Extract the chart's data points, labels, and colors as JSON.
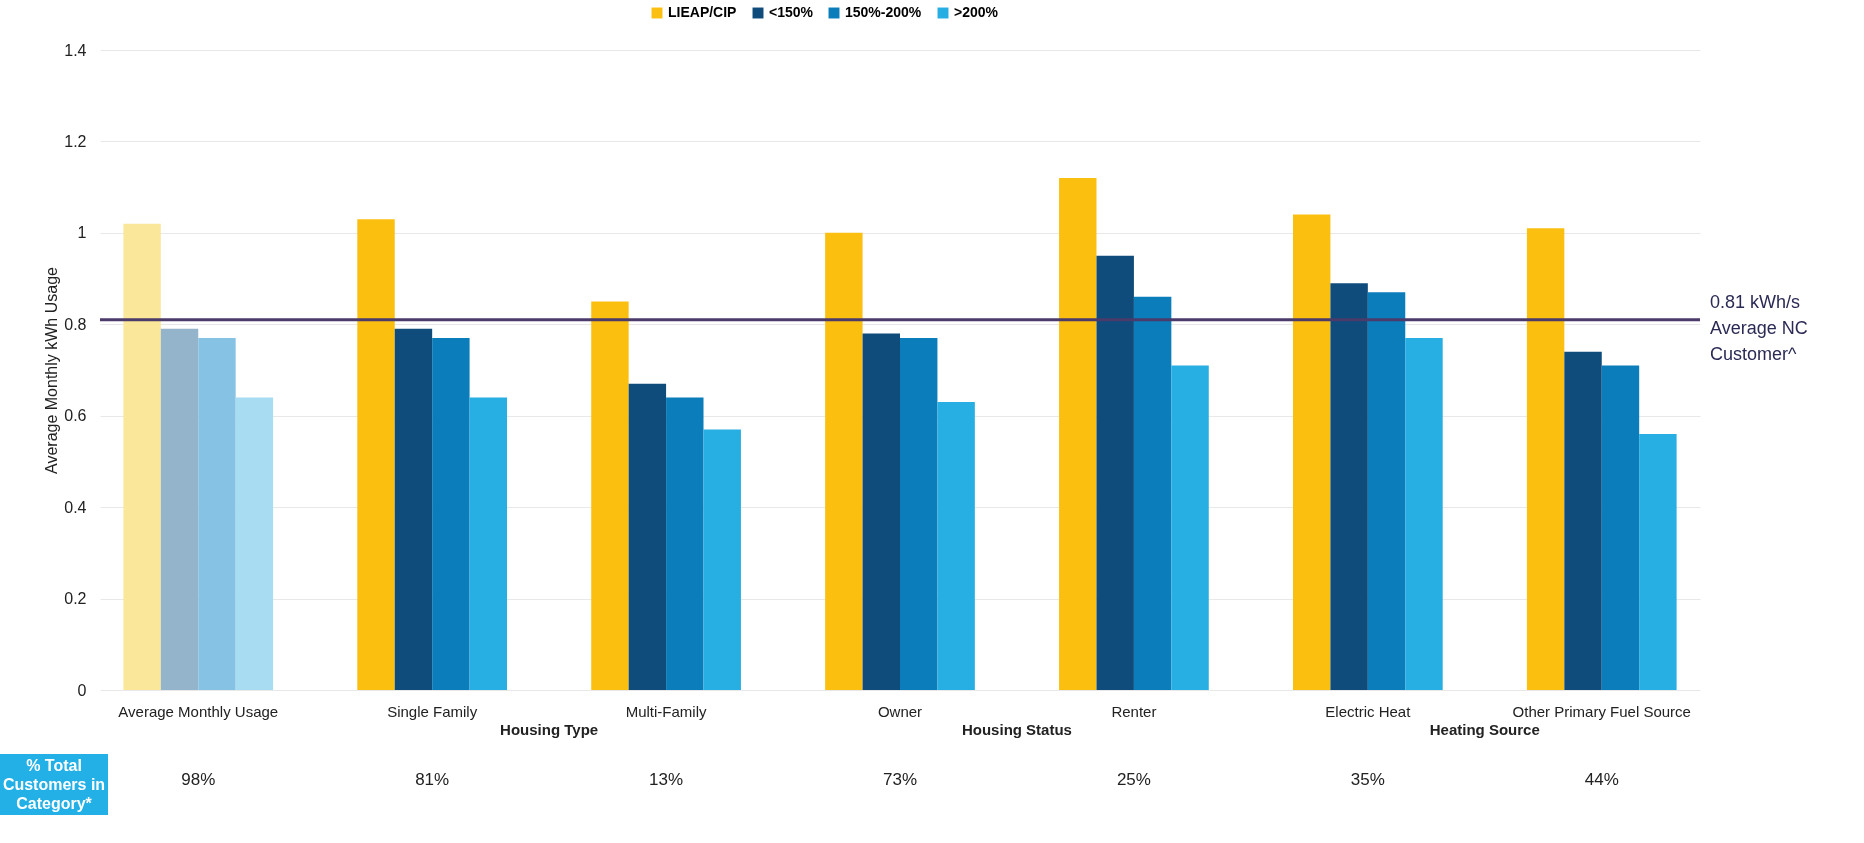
{
  "chart_data": {
    "type": "bar",
    "ylabel": "Average Monthly kWh Usage",
    "categories": [
      "Average Monthly Usage",
      "Single Family",
      "Multi-Family",
      "Owner",
      "Renter",
      "Electric Heat",
      "Other Primary Fuel Source"
    ],
    "series": [
      {
        "name": "LIEAP/CIP",
        "color": "#fbbf10",
        "colors": [
          "#fbe79a",
          "#fbbf10",
          "#fbbf10",
          "#fbbf10",
          "#fbbf10",
          "#fbbf10",
          "#fbbf10"
        ],
        "values": [
          1.02,
          1.03,
          0.85,
          1.0,
          1.12,
          1.04,
          1.01
        ]
      },
      {
        "name": "<150%",
        "color": "#0f4c7c",
        "colors": [
          "#94b4cb",
          "#0f4c7c",
          "#0f4c7c",
          "#0f4c7c",
          "#0f4c7c",
          "#0f4c7c",
          "#0f4c7c"
        ],
        "values": [
          0.79,
          0.79,
          0.67,
          0.78,
          0.95,
          0.89,
          0.74
        ]
      },
      {
        "name": "150%-200%",
        "color": "#0a7dba",
        "colors": [
          "#86c2e4",
          "#0a7dba",
          "#0a7dba",
          "#0a7dba",
          "#0a7dba",
          "#0a7dba",
          "#0a7dba"
        ],
        "values": [
          0.77,
          0.77,
          0.64,
          0.77,
          0.86,
          0.87,
          0.71
        ]
      },
      {
        "name": ">200%",
        "color": "#27aee2",
        "colors": [
          "#a8dcf2",
          "#27aee2",
          "#27aee2",
          "#27aee2",
          "#27aee2",
          "#27aee2",
          "#27aee2"
        ],
        "values": [
          0.64,
          0.64,
          0.57,
          0.63,
          0.71,
          0.77,
          0.56
        ]
      }
    ],
    "ylim": [
      0,
      1.4
    ],
    "yticks": [
      0,
      0.2,
      0.4,
      0.6,
      0.8,
      1,
      1.2,
      1.4
    ],
    "grid": "y",
    "legend": "top",
    "ref_lines": [
      {
        "axis": "y",
        "value": 0.81,
        "label": "0.81 kWh/s\nAverage NC\nCustomer^",
        "color": "#4a3b6b"
      }
    ],
    "annotations": [
      "Housing Type",
      "Housing Status",
      "Heating Source",
      "% Total Customers in Category*",
      "98%",
      "81%",
      "13%",
      "73%",
      "25%",
      "35%",
      "44%"
    ]
  }
}
